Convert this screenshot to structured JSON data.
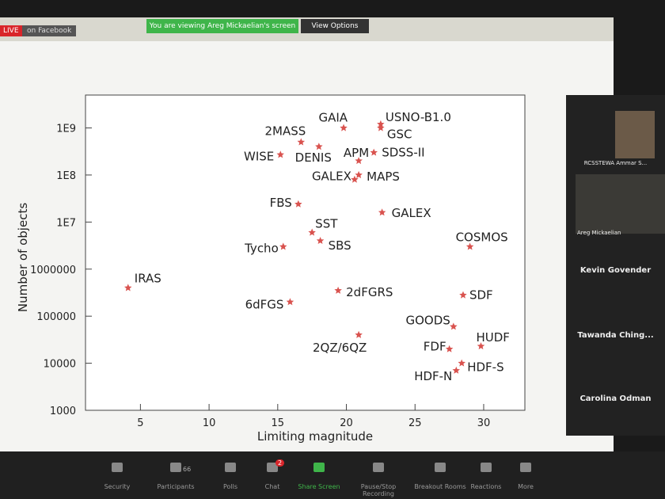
{
  "top_bar": {
    "live": "LIVE",
    "stream": "on Facebook",
    "banner": "You are viewing Areg Mickaelian's screen",
    "view_options": "View Options"
  },
  "participants": [
    "RCSSTEWA Ammar S...",
    "Areg Mickaelian",
    "Kevin Govender",
    "Tawanda Ching...",
    "Carolina Odman"
  ],
  "toolbar": {
    "items": [
      "Security",
      "Participants",
      "Polls",
      "Chat",
      "Share Screen",
      "Pause/Stop Recording",
      "Breakout Rooms",
      "Reactions",
      "More"
    ],
    "participant_count": "66",
    "chat_badge": "2"
  },
  "chart_data": {
    "type": "scatter",
    "xlabel": "Limiting magnitude",
    "ylabel": "Number of objects",
    "color": "#d9534f",
    "log_y": true,
    "x": [
      4.1,
      15.9,
      15.4,
      17.5,
      18.1,
      16.5,
      15.2,
      16.7,
      18.0,
      19.8,
      20.9,
      20.6,
      20.9,
      22.5,
      22.5,
      22.0,
      22.6,
      29.0,
      19.4,
      20.9,
      28.5,
      27.8,
      27.5,
      29.8,
      28.0,
      28.4
    ],
    "values": [
      400000,
      200000,
      3000000,
      6000000,
      4000000,
      24000000,
      270000000,
      500000000,
      400000000,
      1000000000,
      200000000,
      80000000,
      100000000,
      1200000000,
      1000000000,
      300000000,
      16000000,
      3000000,
      350000,
      40000,
      280000,
      60000,
      20000,
      23000,
      7000,
      10000
    ],
    "point_labels": [
      "IRAS",
      "6dFGS",
      "Tycho",
      "SST",
      "SBS",
      "FBS",
      "WISE",
      "2MASS",
      "DENIS",
      "GAIA",
      "APM",
      "GALEX",
      "MAPS",
      "USNO-B1.0",
      "GSC",
      "SDSS-II",
      "GALEX",
      "COSMOS",
      "2dFGRS",
      "2QZ/6QZ",
      "SDF",
      "GOODS",
      "FDF",
      "HUDF",
      "HDF-N",
      "HDF-S"
    ],
    "xlim": [
      1,
      33
    ],
    "xticks": [
      5,
      10,
      15,
      20,
      25,
      30
    ],
    "ylim": [
      1000,
      5000000000
    ],
    "yticks": [
      1000,
      10000,
      100000,
      1000000,
      {
        "value": 10000000,
        "label": "1E7"
      },
      {
        "value": 100000000,
        "label": "1E8"
      },
      {
        "value": 1000000000,
        "label": "1E9"
      }
    ]
  }
}
